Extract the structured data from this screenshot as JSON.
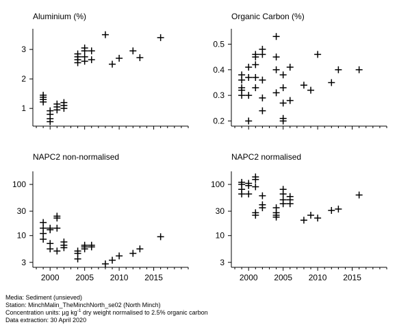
{
  "chart_data": [
    {
      "type": "scatter",
      "title": "Aluminium (%)",
      "scale": "linear",
      "ylim": [
        0.4,
        3.7
      ],
      "yticks": [
        1,
        2,
        3
      ],
      "ytick_labels": [
        "1",
        "2",
        "3"
      ],
      "xlim": [
        1997.5,
        2020
      ],
      "xticks": [
        2000,
        2005,
        2010,
        2015
      ],
      "points": [
        [
          1999,
          1.45
        ],
        [
          1999,
          1.38
        ],
        [
          1999,
          1.3
        ],
        [
          1999,
          1.22
        ],
        [
          2000,
          0.92
        ],
        [
          2000,
          0.8
        ],
        [
          2000,
          0.65
        ],
        [
          2000,
          0.55
        ],
        [
          2001,
          1.15
        ],
        [
          2001,
          1.05
        ],
        [
          2001,
          0.95
        ],
        [
          2002,
          1.2
        ],
        [
          2002,
          1.1
        ],
        [
          2002,
          1.0
        ],
        [
          2004,
          2.85
        ],
        [
          2004,
          2.75
        ],
        [
          2004,
          2.65
        ],
        [
          2004,
          2.55
        ],
        [
          2005,
          3.05
        ],
        [
          2005,
          2.95
        ],
        [
          2005,
          2.75
        ],
        [
          2005,
          2.6
        ],
        [
          2006,
          2.95
        ],
        [
          2006,
          2.65
        ],
        [
          2008,
          3.5
        ],
        [
          2009,
          2.5
        ],
        [
          2010,
          2.7
        ],
        [
          2012,
          2.95
        ],
        [
          2013,
          2.72
        ],
        [
          2016,
          3.4
        ]
      ]
    },
    {
      "type": "scatter",
      "title": "Organic Carbon (%)",
      "scale": "linear",
      "ylim": [
        0.18,
        0.56
      ],
      "yticks": [
        0.2,
        0.3,
        0.4,
        0.5
      ],
      "ytick_labels": [
        "0.2",
        "0.3",
        "0.4",
        "0.5"
      ],
      "xlim": [
        1997.5,
        2020
      ],
      "xticks": [
        2000,
        2005,
        2010,
        2015
      ],
      "points": [
        [
          1999,
          0.38
        ],
        [
          1999,
          0.36
        ],
        [
          1999,
          0.33
        ],
        [
          1999,
          0.32
        ],
        [
          1999,
          0.3
        ],
        [
          2000,
          0.41
        ],
        [
          2000,
          0.37
        ],
        [
          2000,
          0.3
        ],
        [
          2000,
          0.2
        ],
        [
          2001,
          0.46
        ],
        [
          2001,
          0.45
        ],
        [
          2001,
          0.42
        ],
        [
          2001,
          0.37
        ],
        [
          2001,
          0.33
        ],
        [
          2002,
          0.48
        ],
        [
          2002,
          0.46
        ],
        [
          2002,
          0.36
        ],
        [
          2002,
          0.29
        ],
        [
          2002,
          0.24
        ],
        [
          2004,
          0.53
        ],
        [
          2004,
          0.45
        ],
        [
          2004,
          0.4
        ],
        [
          2004,
          0.31
        ],
        [
          2005,
          0.38
        ],
        [
          2005,
          0.33
        ],
        [
          2005,
          0.27
        ],
        [
          2005,
          0.21
        ],
        [
          2005,
          0.2
        ],
        [
          2006,
          0.41
        ],
        [
          2006,
          0.28
        ],
        [
          2008,
          0.34
        ],
        [
          2009,
          0.32
        ],
        [
          2010,
          0.46
        ],
        [
          2012,
          0.35
        ],
        [
          2013,
          0.4
        ],
        [
          2016,
          0.4
        ]
      ]
    },
    {
      "type": "scatter",
      "title": "NAPC2 non-normalised",
      "scale": "log",
      "ylim": [
        2.4,
        180
      ],
      "yticks": [
        3,
        10,
        30,
        100
      ],
      "ytick_labels": [
        "3",
        "10",
        "30",
        "100"
      ],
      "xlim": [
        1997.5,
        2020
      ],
      "xticks": [
        2000,
        2005,
        2010,
        2015
      ],
      "xtick_labels": [
        "2000",
        "2005",
        "2010",
        "2015"
      ],
      "points": [
        [
          1999,
          18
        ],
        [
          1999,
          14
        ],
        [
          1999,
          11
        ],
        [
          1999,
          8.5
        ],
        [
          2000,
          14
        ],
        [
          2000,
          13
        ],
        [
          2000,
          7
        ],
        [
          2000,
          5.5
        ],
        [
          2001,
          24
        ],
        [
          2001,
          22
        ],
        [
          2001,
          14
        ],
        [
          2001,
          5
        ],
        [
          2002,
          7.5
        ],
        [
          2002,
          6.5
        ],
        [
          2002,
          5.8
        ],
        [
          2004,
          5
        ],
        [
          2004,
          4.5
        ],
        [
          2004,
          3.5
        ],
        [
          2005,
          6.5
        ],
        [
          2005,
          6
        ],
        [
          2005,
          5.5
        ],
        [
          2006,
          6.5
        ],
        [
          2006,
          6
        ],
        [
          2008,
          2.8
        ],
        [
          2009,
          3.3
        ],
        [
          2010,
          4
        ],
        [
          2012,
          4.5
        ],
        [
          2013,
          5.5
        ],
        [
          2016,
          9.5
        ]
      ]
    },
    {
      "type": "scatter",
      "title": "NAPC2 normalised",
      "scale": "log",
      "ylim": [
        2.4,
        180
      ],
      "yticks": [
        3,
        10,
        30,
        100
      ],
      "ytick_labels": [
        "3",
        "10",
        "30",
        "100"
      ],
      "xlim": [
        1997.5,
        2020
      ],
      "xticks": [
        2000,
        2005,
        2010,
        2015
      ],
      "xtick_labels": [
        "2000",
        "2005",
        "2010",
        "2015"
      ],
      "points": [
        [
          1999,
          110
        ],
        [
          1999,
          100
        ],
        [
          1999,
          80
        ],
        [
          1999,
          65
        ],
        [
          2000,
          105
        ],
        [
          2000,
          95
        ],
        [
          2000,
          65
        ],
        [
          2001,
          140
        ],
        [
          2001,
          125
        ],
        [
          2001,
          90
        ],
        [
          2001,
          28
        ],
        [
          2001,
          25
        ],
        [
          2002,
          60
        ],
        [
          2002,
          40
        ],
        [
          2002,
          35
        ],
        [
          2004,
          35
        ],
        [
          2004,
          28
        ],
        [
          2004,
          25
        ],
        [
          2004,
          23
        ],
        [
          2005,
          80
        ],
        [
          2005,
          65
        ],
        [
          2005,
          50
        ],
        [
          2005,
          42
        ],
        [
          2006,
          58
        ],
        [
          2006,
          50
        ],
        [
          2006,
          42
        ],
        [
          2008,
          20
        ],
        [
          2009,
          25
        ],
        [
          2010,
          22
        ],
        [
          2012,
          31
        ],
        [
          2013,
          33
        ],
        [
          2016,
          62
        ]
      ]
    }
  ],
  "footer": {
    "media": "Media: Sediment (unsieved)",
    "station": "Station: MinchMalin_TheMinchNorth_se02 (North Minch)",
    "units_prefix": "Concentration units:  µg kg",
    "units_sup": "-1",
    "units_suffix": " dry weight normalised to 2.5% organic carbon",
    "extraction": "Data extraction: 30 April 2020"
  }
}
